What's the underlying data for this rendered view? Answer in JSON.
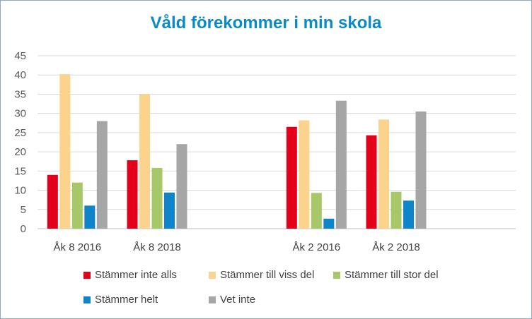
{
  "chart_data": {
    "type": "bar",
    "title": "Våld förekommer i min skola",
    "categories": [
      "Åk 8 2016",
      "Åk 8 2018",
      "",
      "Åk 2 2016",
      "Åk 2 2018",
      ""
    ],
    "series": [
      {
        "name": "Stämmer inte alls",
        "color": "#e3001b",
        "values": [
          14,
          17.8,
          null,
          26.5,
          24.3,
          null
        ]
      },
      {
        "name": "Stämmer till viss del",
        "color": "#fbd38c",
        "values": [
          40.2,
          35,
          null,
          28.2,
          28.4,
          null
        ]
      },
      {
        "name": "Stämmer till stor del",
        "color": "#a6c869",
        "values": [
          12,
          15.8,
          null,
          9.3,
          9.6,
          null
        ]
      },
      {
        "name": "Stämmer helt",
        "color": "#0f84c8",
        "values": [
          6,
          9.4,
          null,
          2.6,
          7.3,
          null
        ]
      },
      {
        "name": "Vet inte",
        "color": "#a6a6a6",
        "values": [
          28,
          22,
          null,
          33.3,
          30.5,
          null
        ]
      }
    ],
    "ylim": [
      0,
      45
    ],
    "yticks": [
      "0",
      "5",
      "10",
      "15",
      "20",
      "25",
      "30",
      "35",
      "40",
      "45"
    ],
    "grid": true,
    "legend_position": "bottom"
  }
}
